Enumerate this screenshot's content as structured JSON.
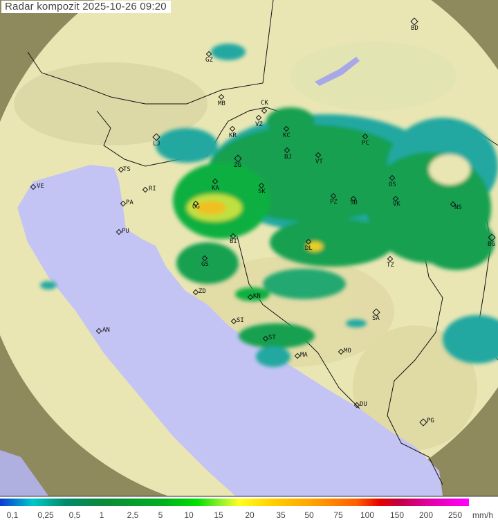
{
  "title": "Radar kompozit  2025-10-26   09:20",
  "colors": {
    "sea": "#c4c4f4",
    "land": "#e9e6b4",
    "out_of_range": "#8f8a5e",
    "rain_light": "#20a0a0",
    "rain_mid": "#10a040",
    "rain_heavy": "#f0e020",
    "rain_extreme": "#ff8000"
  },
  "cities": [
    "BD",
    "GZ",
    "MB",
    "CK",
    "VZ",
    "KR",
    "KC",
    "LJ",
    "ZG",
    "BJ",
    "VT",
    "PC",
    "TS",
    "VE",
    "RI",
    "KA",
    "SK",
    "OS",
    "PA",
    "OG",
    "PZ",
    "SB",
    "VK",
    "NS",
    "PU",
    "BG",
    "BI",
    "DL",
    "GS",
    "TZ",
    "ZD",
    "KN",
    "SA",
    "SI",
    "AN",
    "ST",
    "MO",
    "MA",
    "DU",
    "PG"
  ],
  "legend": {
    "unit": "mm/h",
    "ticks": [
      "0,1",
      "0,25",
      "0,5",
      "1",
      "2,5",
      "5",
      "10",
      "15",
      "20",
      "35",
      "50",
      "75",
      "100",
      "150",
      "200",
      "250"
    ]
  }
}
